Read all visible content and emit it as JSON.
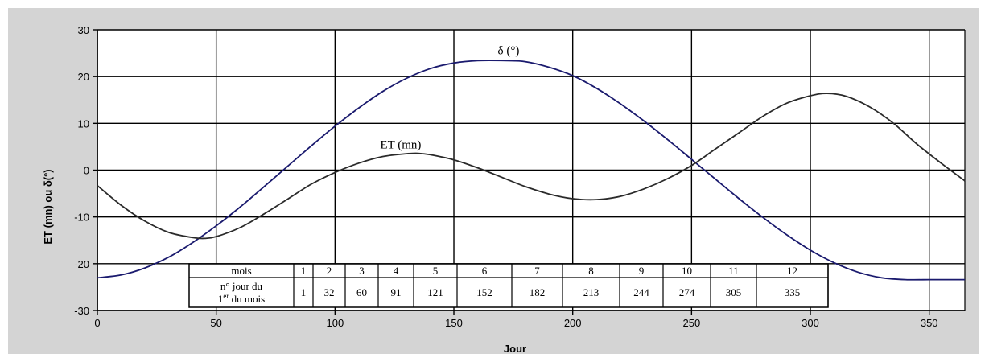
{
  "chart_data": {
    "type": "line",
    "xlabel": "Jour",
    "ylabel": "ET (mn) ou δ(°)",
    "xlim": [
      0,
      365
    ],
    "ylim": [
      -30,
      30
    ],
    "x_ticks": [
      0,
      50,
      100,
      150,
      200,
      250,
      300,
      350
    ],
    "y_ticks": [
      -30,
      -20,
      -10,
      0,
      10,
      20,
      30
    ],
    "grid": true,
    "series": [
      {
        "name": "δ (°)",
        "color": "#1a1a6e",
        "x": [
          0,
          10,
          20,
          30,
          40,
          50,
          60,
          70,
          80,
          90,
          100,
          110,
          120,
          130,
          140,
          150,
          160,
          172,
          180,
          190,
          200,
          210,
          220,
          230,
          240,
          250,
          260,
          270,
          280,
          290,
          300,
          310,
          320,
          330,
          340,
          350,
          355,
          365
        ],
        "values": [
          -23.0,
          -22.4,
          -20.9,
          -18.6,
          -15.5,
          -11.9,
          -7.9,
          -3.6,
          0.8,
          5.2,
          9.4,
          13.3,
          16.8,
          19.6,
          21.7,
          22.9,
          23.4,
          23.4,
          23.2,
          22.0,
          20.2,
          17.5,
          14.2,
          10.5,
          6.5,
          2.3,
          -1.9,
          -6.1,
          -10.1,
          -13.8,
          -17.1,
          -19.8,
          -21.8,
          -23.0,
          -23.4,
          -23.4,
          -23.4,
          -23.4
        ]
      },
      {
        "name": "ET (mn)",
        "color": "#2a2a2a",
        "x": [
          0,
          10,
          20,
          30,
          40,
          45,
          50,
          60,
          70,
          80,
          90,
          100,
          110,
          120,
          130,
          135,
          140,
          150,
          160,
          170,
          180,
          190,
          200,
          210,
          220,
          230,
          240,
          250,
          260,
          270,
          280,
          290,
          300,
          307,
          315,
          325,
          335,
          345,
          355,
          365
        ],
        "values": [
          -3.3,
          -7.5,
          -10.9,
          -13.3,
          -14.4,
          -14.6,
          -14.2,
          -12.3,
          -9.4,
          -6.2,
          -3.0,
          -0.5,
          1.5,
          2.9,
          3.5,
          3.6,
          3.3,
          2.2,
          0.5,
          -1.5,
          -3.5,
          -5.1,
          -6.1,
          -6.3,
          -5.6,
          -4.0,
          -1.8,
          1.0,
          4.5,
          8.0,
          11.5,
          14.3,
          15.9,
          16.4,
          15.8,
          13.5,
          10.0,
          5.5,
          1.5,
          -2.3
        ]
      }
    ],
    "annotations": [
      {
        "text": "δ (°)",
        "x": 173,
        "y": 23.4
      },
      {
        "text": "ET (mn)",
        "x": 131,
        "y": 3.6
      }
    ]
  },
  "table": {
    "row1_header": "mois",
    "row2_header_line1": "n° jour du",
    "row2_header_line2_main": "1",
    "row2_header_line2_sup": "er",
    "row2_header_line2_rest": " du mois",
    "months": [
      "1",
      "2",
      "3",
      "4",
      "5",
      "6",
      "7",
      "8",
      "9",
      "10",
      "11",
      "12"
    ],
    "first_days": [
      "1",
      "32",
      "60",
      "91",
      "121",
      "152",
      "182",
      "213",
      "244",
      "274",
      "305",
      "335"
    ]
  }
}
